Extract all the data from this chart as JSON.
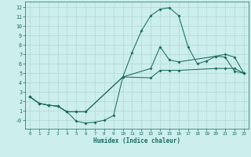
{
  "background_color": "#cceeed",
  "grid_color": "#b0d8d5",
  "line_color": "#1a6b60",
  "xlabel": "Humidex (Indice chaleur)",
  "xlim": [
    -0.5,
    23.5
  ],
  "ylim": [
    -0.9,
    12.6
  ],
  "xticks": [
    0,
    1,
    2,
    3,
    4,
    5,
    6,
    7,
    8,
    9,
    10,
    11,
    12,
    13,
    14,
    15,
    16,
    17,
    18,
    19,
    20,
    21,
    22,
    23
  ],
  "yticks": [
    0,
    1,
    2,
    3,
    4,
    5,
    6,
    7,
    8,
    9,
    10,
    11,
    12
  ],
  "ytick_labels": [
    "-0",
    "1",
    "2",
    "3",
    "4",
    "5",
    "6",
    "7",
    "8",
    "9",
    "10",
    "11",
    "12"
  ],
  "line1_x": [
    0,
    1,
    2,
    3,
    4,
    5,
    6,
    7,
    8,
    9,
    10,
    11,
    12,
    13,
    14,
    15,
    16,
    17,
    18,
    19,
    20,
    21,
    22,
    23
  ],
  "line1_y": [
    2.5,
    1.8,
    1.6,
    1.5,
    0.9,
    -0.1,
    -0.3,
    -0.2,
    0.0,
    0.5,
    4.6,
    7.2,
    9.5,
    11.1,
    11.8,
    11.95,
    11.1,
    7.8,
    6.0,
    6.3,
    6.8,
    6.7,
    5.2,
    5.0
  ],
  "line2_x": [
    0,
    1,
    2,
    3,
    4,
    5,
    6,
    10,
    13,
    14,
    15,
    16,
    20,
    21,
    22,
    23
  ],
  "line2_y": [
    2.5,
    1.8,
    1.6,
    1.5,
    0.9,
    0.9,
    0.9,
    4.6,
    5.5,
    7.8,
    6.4,
    6.2,
    6.8,
    7.0,
    6.7,
    5.0
  ],
  "line3_x": [
    0,
    1,
    2,
    3,
    4,
    5,
    6,
    10,
    13,
    14,
    15,
    16,
    20,
    21,
    22,
    23
  ],
  "line3_y": [
    2.5,
    1.8,
    1.6,
    1.5,
    0.9,
    0.9,
    0.9,
    4.6,
    4.5,
    5.3,
    5.3,
    5.3,
    5.5,
    5.5,
    5.5,
    5.0
  ]
}
